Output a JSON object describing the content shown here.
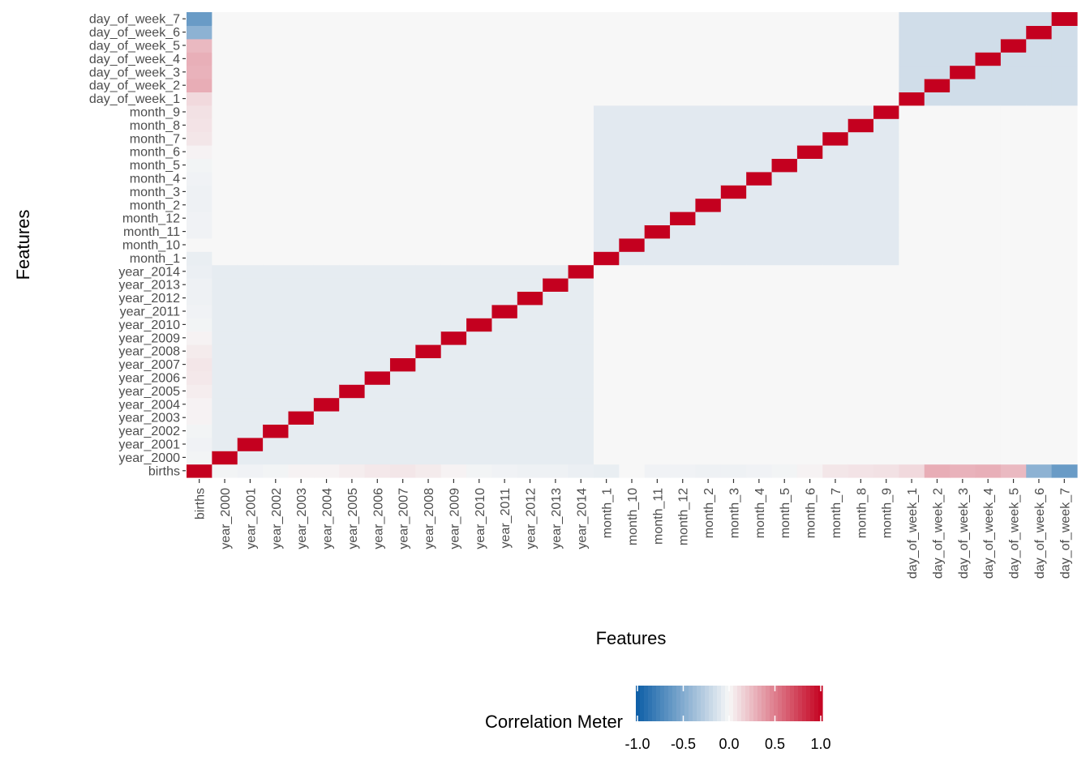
{
  "chart_data": {
    "type": "heatmap",
    "xlabel": "Features",
    "ylabel": "Features",
    "features": [
      "births",
      "year_2000",
      "year_2001",
      "year_2002",
      "year_2003",
      "year_2004",
      "year_2005",
      "year_2006",
      "year_2007",
      "year_2008",
      "year_2009",
      "year_2010",
      "year_2011",
      "year_2012",
      "year_2013",
      "year_2014",
      "month_1",
      "month_10",
      "month_11",
      "month_12",
      "month_2",
      "month_3",
      "month_4",
      "month_5",
      "month_6",
      "month_7",
      "month_8",
      "month_9",
      "day_of_week_1",
      "day_of_week_2",
      "day_of_week_3",
      "day_of_week_4",
      "day_of_week_5",
      "day_of_week_6",
      "day_of_week_7"
    ],
    "births_correlations": [
      1.0,
      -0.02,
      -0.03,
      -0.02,
      0.02,
      0.02,
      0.04,
      0.06,
      0.07,
      0.05,
      0.02,
      -0.02,
      -0.03,
      -0.04,
      -0.04,
      -0.05,
      -0.06,
      0.0,
      -0.03,
      -0.03,
      -0.04,
      -0.04,
      -0.03,
      -0.02,
      0.02,
      0.07,
      0.08,
      0.09,
      0.12,
      0.3,
      0.28,
      0.29,
      0.25,
      -0.45,
      -0.6
    ],
    "within_group_correlation": {
      "year": -0.071,
      "month": -0.09,
      "day_of_week": -0.167
    },
    "across_group_correlation": 0.0,
    "diagonal": 1.0,
    "legend": {
      "title": "Correlation Meter",
      "ticks": [
        "-1.0",
        "-0.5",
        "0.0",
        "0.5",
        "1.0"
      ],
      "range": [
        -1,
        1
      ],
      "colors": {
        "low": "#0b5da6",
        "mid": "#f7f7f7",
        "high": "#c4001f"
      }
    }
  }
}
